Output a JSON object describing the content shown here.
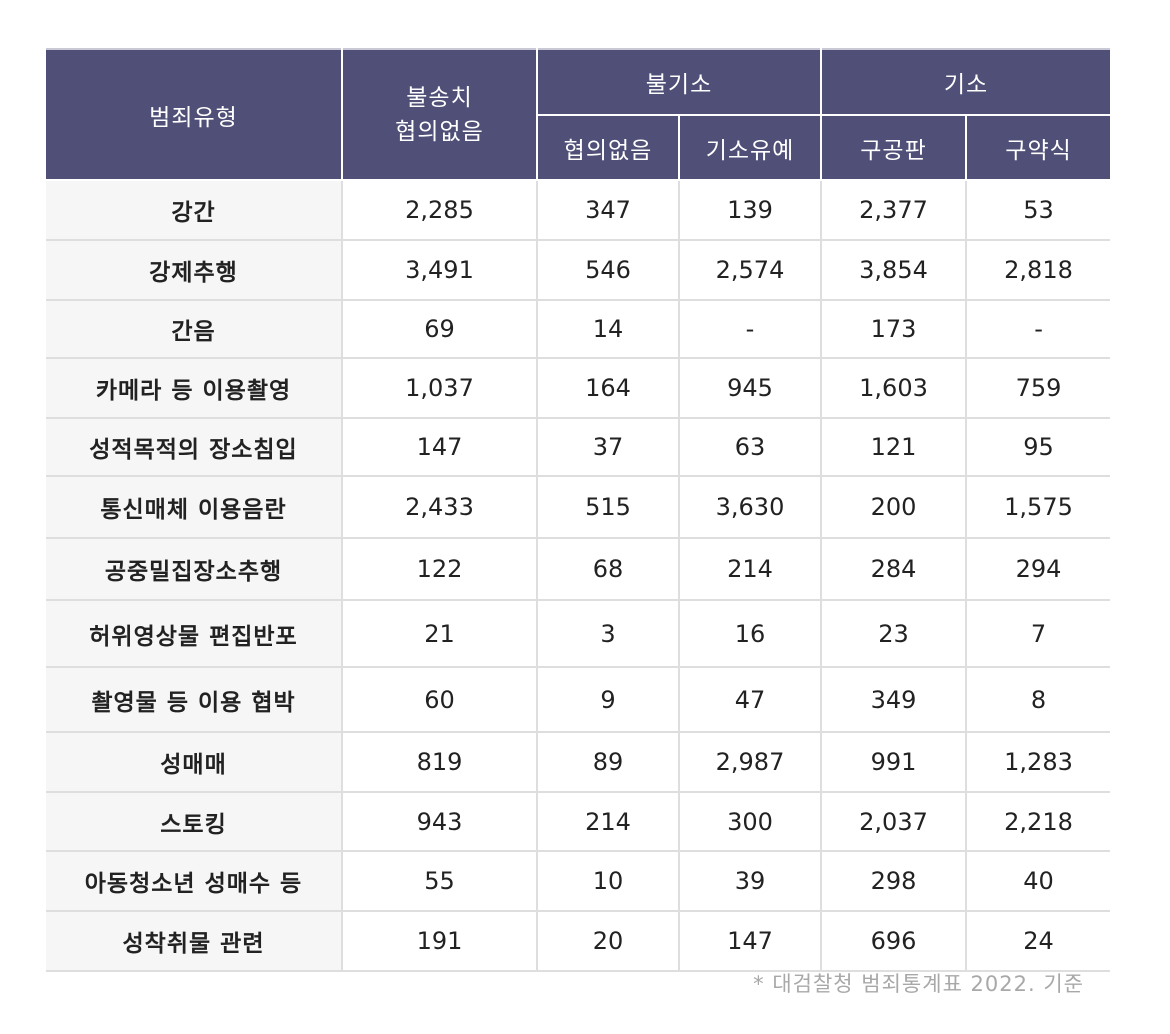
{
  "header": {
    "category": "범죄유형",
    "col1_line1": "불송치",
    "col1_line2": "협의없음",
    "group_nonindict": "불기소",
    "group_indict": "기소",
    "nonindict_1": "협의없음",
    "nonindict_2": "기소유예",
    "indict_1": "구공판",
    "indict_2": "구약식"
  },
  "rows": [
    {
      "type": "강간",
      "v": [
        "2,285",
        "347",
        "139",
        "2,377",
        "53"
      ]
    },
    {
      "type": "강제추행",
      "v": [
        "3,491",
        "546",
        "2,574",
        "3,854",
        "2,818"
      ]
    },
    {
      "type": "간음",
      "v": [
        "69",
        "14",
        "-",
        "173",
        "-"
      ]
    },
    {
      "type": "카메라 등 이용촬영",
      "v": [
        "1,037",
        "164",
        "945",
        "1,603",
        "759"
      ]
    },
    {
      "type": "성적목적의 장소침입",
      "v": [
        "147",
        "37",
        "63",
        "121",
        "95"
      ]
    },
    {
      "type": "통신매체 이용음란",
      "v": [
        "2,433",
        "515",
        "3,630",
        "200",
        "1,575"
      ]
    },
    {
      "type": "공중밀집장소추행",
      "v": [
        "122",
        "68",
        "214",
        "284",
        "294"
      ]
    },
    {
      "type": "허위영상물 편집반포",
      "v": [
        "21",
        "3",
        "16",
        "23",
        "7"
      ]
    },
    {
      "type": "촬영물 등 이용 협박",
      "v": [
        "60",
        "9",
        "47",
        "349",
        "8"
      ]
    },
    {
      "type": "성매매",
      "v": [
        "819",
        "89",
        "2,987",
        "991",
        "1,283"
      ]
    },
    {
      "type": "스토킹",
      "v": [
        "943",
        "214",
        "300",
        "2,037",
        "2,218"
      ]
    },
    {
      "type": "아동청소년 성매수 등",
      "v": [
        "55",
        "10",
        "39",
        "298",
        "40"
      ]
    },
    {
      "type": "성착취물 관련",
      "v": [
        "191",
        "20",
        "147",
        "696",
        "24"
      ]
    }
  ],
  "footnote": "* 대검찰청 범죄통계표 2022. 기준",
  "colors": {
    "header_bg": "#4f4f78",
    "label_bg": "#f6f6f6",
    "grid": "#dedede",
    "note": "#a8a8a8"
  }
}
